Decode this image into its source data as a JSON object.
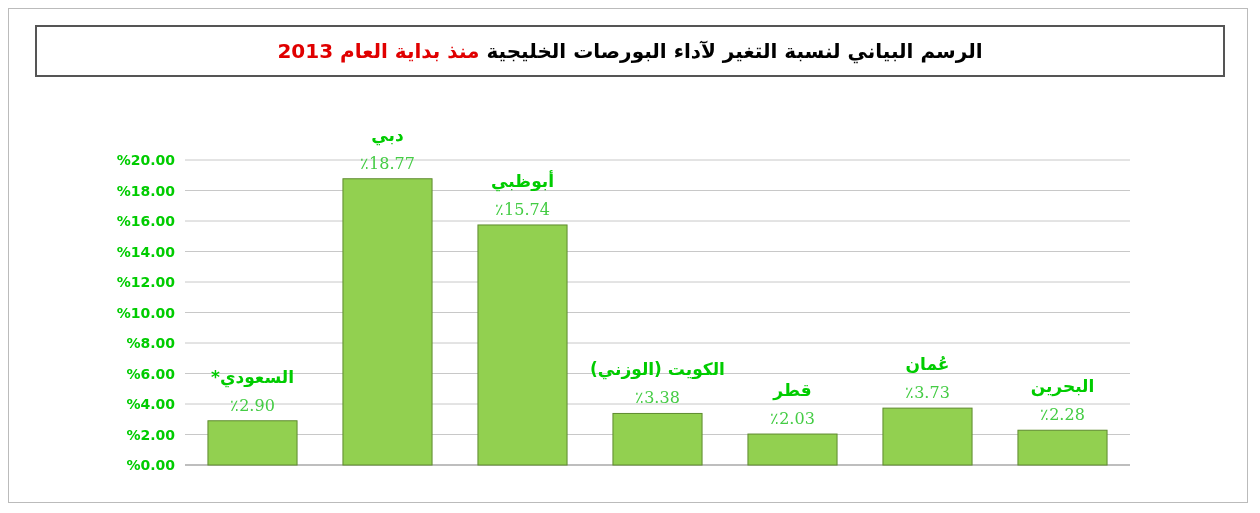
{
  "chart_data": {
    "type": "bar",
    "title": "الرسم البياني لنسبة التغير لآداء البورصات الخليجية",
    "subtitle": "منذ بداية العام 2013",
    "categories": [
      "السعودي*",
      "دبي",
      "أبوظبي",
      "الكويت (الوزني)",
      "قطر",
      "عُمان",
      "البحرين"
    ],
    "values": [
      2.9,
      18.77,
      15.74,
      3.38,
      2.03,
      3.73,
      2.28
    ],
    "value_labels": [
      "٪2.90",
      "٪18.77",
      "٪15.74",
      "٪3.38",
      "٪2.03",
      "٪3.73",
      "٪2.28"
    ],
    "color": "#92d050",
    "ylim": [
      0,
      20
    ],
    "yticks": [
      {
        "value": 0,
        "label": "%0.00"
      },
      {
        "value": 2,
        "label": "%2.00"
      },
      {
        "value": 4,
        "label": "%4.00"
      },
      {
        "value": 6,
        "label": "%6.00"
      },
      {
        "value": 8,
        "label": "%8.00"
      },
      {
        "value": 10,
        "label": "%10.00"
      },
      {
        "value": 12,
        "label": "%12.00"
      },
      {
        "value": 14,
        "label": "%14.00"
      },
      {
        "value": 16,
        "label": "%16.00"
      },
      {
        "value": 18,
        "label": "%18.00"
      },
      {
        "value": 20,
        "label": "%20.00"
      }
    ],
    "grid": "y"
  }
}
